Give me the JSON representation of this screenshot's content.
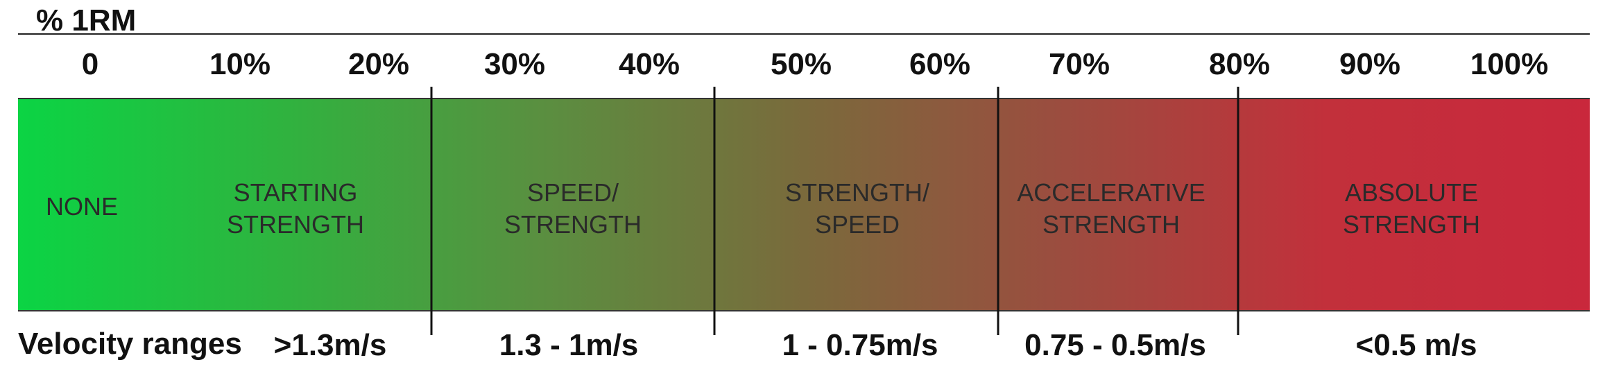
{
  "axis_title": "% 1RM",
  "ticks": [
    "0",
    "10%",
    "20%",
    "30%",
    "40%",
    "50%",
    "60%",
    "70%",
    "80%",
    "90%",
    "100%"
  ],
  "zones": [
    {
      "label": "NONE"
    },
    {
      "label": "STARTING\nSTRENGTH"
    },
    {
      "label": "SPEED/\nSTRENGTH"
    },
    {
      "label": "STRENGTH/\nSPEED"
    },
    {
      "label": "ACCELERATIVE\nSTRENGTH"
    },
    {
      "label": "ABSOLUTE\nSTRENGTH"
    }
  ],
  "velocity": {
    "title": "Velocity ranges",
    "ranges": [
      ">1.3m/s",
      "1.3 - 1m/s",
      "1 - 0.75m/s",
      "0.75 - 0.5m/s",
      "<0.5 m/s"
    ]
  },
  "colors": {
    "gradient": [
      "#0bd444",
      "#2fb33f",
      "#5a8f40",
      "#7a6a3c",
      "#9c4c3f",
      "#c2303b",
      "#c9283c"
    ]
  }
}
